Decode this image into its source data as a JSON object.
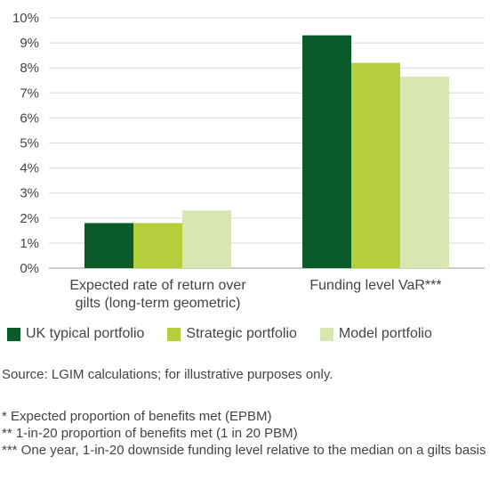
{
  "chart_data": {
    "type": "bar",
    "categories": [
      "Expected rate of return over gilts (long-term geometric)",
      "Funding level VaR***"
    ],
    "category_lines": [
      [
        "Expected rate of return over",
        "gilts (long-term geometric)"
      ],
      [
        "Funding level VaR***"
      ]
    ],
    "series": [
      {
        "name": "UK typical portfolio",
        "color": "#0a5a2a",
        "values": [
          1.8,
          9.3
        ]
      },
      {
        "name": "Strategic portfolio",
        "color": "#b5cf3c",
        "values": [
          1.8,
          8.2
        ]
      },
      {
        "name": "Model portfolio",
        "color": "#d8e6b1",
        "values": [
          2.3,
          7.65
        ]
      }
    ],
    "yticks": [
      "0%",
      "1%",
      "2%",
      "3%",
      "4%",
      "5%",
      "6%",
      "7%",
      "8%",
      "9%",
      "10%"
    ],
    "ylim": [
      0,
      10
    ],
    "grid": true,
    "legend_position": "bottom"
  },
  "source": "Source: LGIM calculations; for illustrative purposes only.",
  "notes": [
    "* Expected proportion of benefits met (EPBM)",
    "** 1-in-20 proportion of benefits met (1 in 20 PBM)",
    "*** One year, 1-in-20 downside funding level relative to the median on a gilts basis"
  ]
}
